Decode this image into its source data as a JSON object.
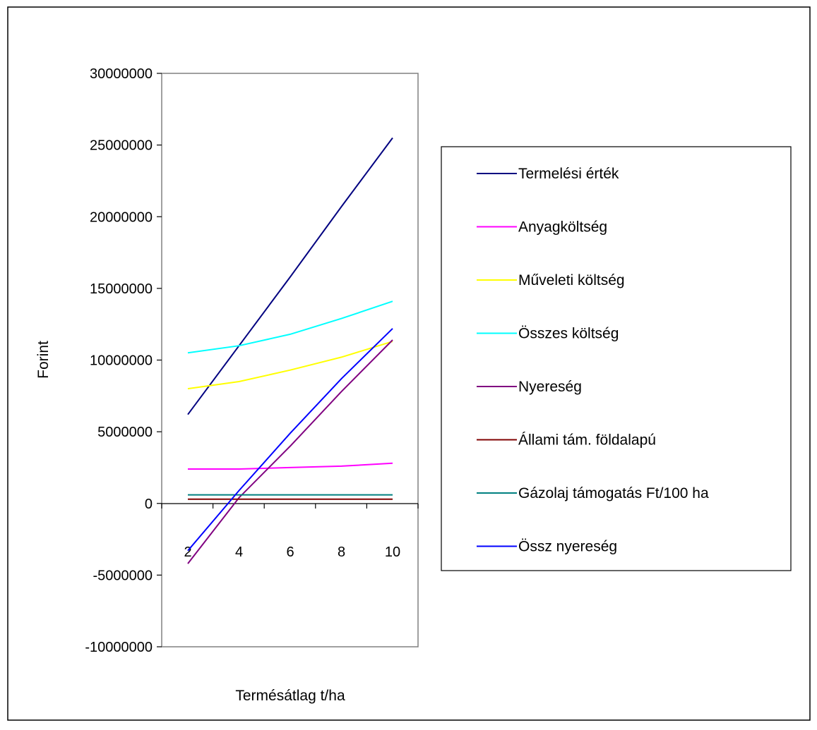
{
  "chart_data": {
    "type": "line",
    "title": "",
    "xlabel": "Termésátlag t/ha",
    "ylabel": "Forint",
    "x": [
      2,
      4,
      6,
      8,
      10
    ],
    "ylim": [
      -10000000,
      30000000
    ],
    "yticks": [
      -10000000,
      -5000000,
      0,
      5000000,
      10000000,
      15000000,
      20000000,
      25000000,
      30000000
    ],
    "ytick_labels": [
      "-10000000",
      "-5000000",
      "0",
      "5000000",
      "10000000",
      "15000000",
      "20000000",
      "25000000",
      "30000000"
    ],
    "xtick_labels": [
      "2",
      "4",
      "6",
      "8",
      "10"
    ],
    "grid": false,
    "legend_position": "right",
    "series": [
      {
        "name": "Termelési érték",
        "color": "#000080",
        "values": [
          6200000,
          11000000,
          15800000,
          20700000,
          25500000
        ]
      },
      {
        "name": "Anyagköltség",
        "color": "#FF00FF",
        "values": [
          2400000,
          2400000,
          2500000,
          2600000,
          2800000
        ]
      },
      {
        "name": "Műveleti költség",
        "color": "#FFFF00",
        "values": [
          8000000,
          8500000,
          9300000,
          10200000,
          11300000
        ]
      },
      {
        "name": "Összes költség",
        "color": "#00FFFF",
        "values": [
          10500000,
          11000000,
          11800000,
          12900000,
          14100000
        ]
      },
      {
        "name": "Nyereség",
        "color": "#800080",
        "values": [
          -4200000,
          400000,
          4000000,
          7800000,
          11400000
        ]
      },
      {
        "name": "Állami tám. földalapú",
        "color": "#800000",
        "values": [
          300000,
          300000,
          300000,
          300000,
          300000
        ]
      },
      {
        "name": "Gázolaj támogatás Ft/100 ha",
        "color": "#008080",
        "values": [
          600000,
          600000,
          600000,
          600000,
          600000
        ]
      },
      {
        "name": "Össz nyereség",
        "color": "#0000FF",
        "values": [
          -3300000,
          900000,
          4900000,
          8700000,
          12200000
        ]
      }
    ]
  }
}
